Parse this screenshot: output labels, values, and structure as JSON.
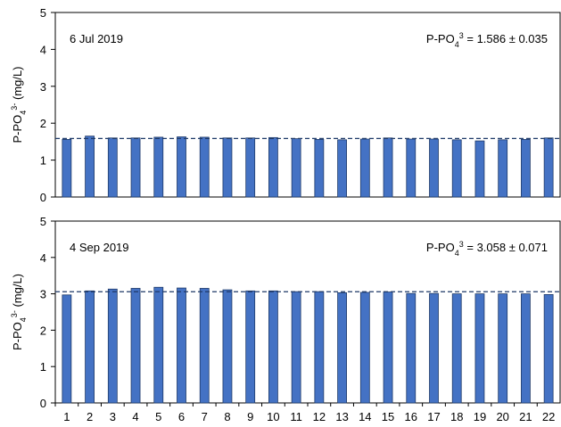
{
  "chart_data": [
    {
      "type": "bar",
      "date_label": "6 Jul 2019",
      "stat_label": [
        {
          "text": "P-PO"
        },
        {
          "text": "4",
          "shift": "sub"
        },
        {
          "text": "3",
          "shift": "super"
        },
        {
          "text": " = 1.586 ± 0.035"
        }
      ],
      "ylabel": [
        {
          "text": "P-PO"
        },
        {
          "text": "4",
          "shift": "sub"
        },
        {
          "text": "3-",
          "shift": "super"
        },
        {
          "text": " (mg/L)"
        }
      ],
      "values": [
        1.56,
        1.65,
        1.6,
        1.6,
        1.62,
        1.63,
        1.62,
        1.6,
        1.6,
        1.61,
        1.58,
        1.56,
        1.55,
        1.57,
        1.6,
        1.57,
        1.57,
        1.55,
        1.52,
        1.55,
        1.56,
        1.6
      ],
      "reference": 1.586,
      "color": "#4472c4",
      "ylim": [
        0,
        5
      ],
      "yticks": [
        0,
        1,
        2,
        3,
        4,
        5
      ]
    },
    {
      "type": "bar",
      "date_label": "4 Sep 2019",
      "stat_label": [
        {
          "text": "P-PO"
        },
        {
          "text": "4",
          "shift": "sub"
        },
        {
          "text": "3",
          "shift": "super"
        },
        {
          "text": " = 3.058 ± 0.071"
        }
      ],
      "ylabel": [
        {
          "text": "P-PO"
        },
        {
          "text": "4",
          "shift": "sub"
        },
        {
          "text": "3-",
          "shift": "super"
        },
        {
          "text": " (mg/L)"
        }
      ],
      "categories": [
        "1",
        "2",
        "3",
        "4",
        "5",
        "6",
        "7",
        "8",
        "9",
        "10",
        "11",
        "12",
        "13",
        "14",
        "15",
        "16",
        "17",
        "18",
        "19",
        "20",
        "21",
        "22"
      ],
      "values": [
        2.97,
        3.08,
        3.13,
        3.15,
        3.18,
        3.16,
        3.15,
        3.11,
        3.08,
        3.08,
        3.06,
        3.06,
        3.03,
        3.04,
        3.05,
        3.01,
        3.01,
        3.0,
        3.0,
        3.0,
        3.0,
        2.98
      ],
      "reference": 3.058,
      "color": "#4472c4",
      "ylim": [
        0,
        5
      ],
      "yticks": [
        0,
        1,
        2,
        3,
        4,
        5
      ]
    }
  ]
}
